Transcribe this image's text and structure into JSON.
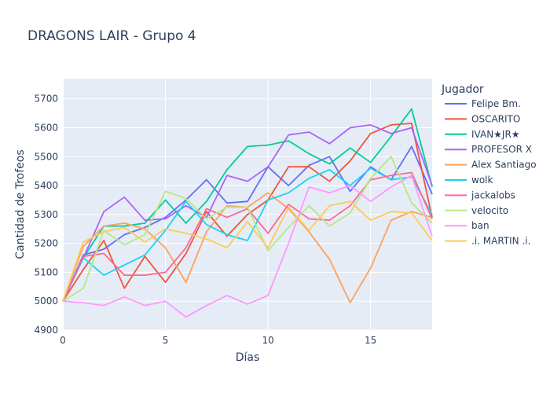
{
  "chart_data": {
    "type": "line",
    "title": "DRAGONS LAIR - Grupo 4",
    "xlabel": "Días",
    "ylabel": "Cantidad de Trofeos",
    "xlim": [
      0,
      18
    ],
    "ylim": [
      4900,
      5770
    ],
    "x_ticks": [
      0,
      5,
      10,
      15
    ],
    "y_ticks": [
      4900,
      5000,
      5100,
      5200,
      5300,
      5400,
      5500,
      5600,
      5700
    ],
    "grid": true,
    "legend_title": "Jugador",
    "legend_position": "right",
    "x": [
      0,
      1,
      2,
      3,
      4,
      5,
      6,
      7,
      8,
      9,
      10,
      11,
      12,
      13,
      14,
      15,
      16,
      17,
      18
    ],
    "series": [
      {
        "name": "Felipe Bm.",
        "color": "#636efa",
        "values": [
          5000,
          5160,
          5180,
          5230,
          5255,
          5290,
          5350,
          5420,
          5340,
          5345,
          5465,
          5400,
          5470,
          5500,
          5380,
          5465,
          5420,
          5535,
          5370
        ]
      },
      {
        "name": "OSCARITO",
        "color": "#ef553b",
        "values": [
          5000,
          5110,
          5210,
          5045,
          5155,
          5065,
          5165,
          5310,
          5225,
          5300,
          5350,
          5465,
          5465,
          5415,
          5485,
          5580,
          5610,
          5615,
          5290
        ]
      },
      {
        "name": "IVAN★JR★",
        "color": "#00cc96",
        "values": [
          5000,
          5150,
          5260,
          5260,
          5270,
          5350,
          5270,
          5345,
          5455,
          5535,
          5540,
          5555,
          5510,
          5475,
          5530,
          5480,
          5570,
          5665,
          5395
        ]
      },
      {
        "name": "PROFESOR X",
        "color": "#ab63fa",
        "values": [
          5000,
          5150,
          5310,
          5360,
          5280,
          5285,
          5330,
          5290,
          5435,
          5415,
          5465,
          5575,
          5585,
          5545,
          5600,
          5610,
          5580,
          5600,
          5400
        ]
      },
      {
        "name": "Alex Santiago",
        "color": "#ffa15a",
        "values": [
          5000,
          5190,
          5260,
          5270,
          5250,
          5185,
          5065,
          5240,
          5330,
          5325,
          5375,
          5320,
          5240,
          5145,
          4995,
          5115,
          5280,
          5310,
          5290
        ]
      },
      {
        "name": "wolk",
        "color": "#19d3f3",
        "values": [
          5000,
          5150,
          5090,
          5125,
          5160,
          5245,
          5345,
          5265,
          5230,
          5210,
          5350,
          5375,
          5425,
          5455,
          5400,
          5460,
          5420,
          5430,
          5300
        ]
      },
      {
        "name": "jackalobs",
        "color": "#ff6692",
        "values": [
          5000,
          5155,
          5165,
          5090,
          5090,
          5100,
          5185,
          5320,
          5290,
          5320,
          5235,
          5335,
          5285,
          5280,
          5330,
          5420,
          5435,
          5445,
          5285
        ]
      },
      {
        "name": "velocito",
        "color": "#b6e880",
        "values": [
          5000,
          5045,
          5245,
          5195,
          5230,
          5380,
          5355,
          5285,
          5325,
          5325,
          5175,
          5255,
          5330,
          5260,
          5305,
          5425,
          5500,
          5340,
          5270
        ]
      },
      {
        "name": "ban",
        "color": "#ff97ff",
        "values": [
          5000,
          4995,
          4985,
          5015,
          4985,
          5000,
          4945,
          4985,
          5020,
          4990,
          5020,
          5200,
          5395,
          5375,
          5400,
          5345,
          5395,
          5435,
          5225
        ]
      },
      {
        "name": ".i. MARTIN .i.",
        "color": "#fecb52",
        "values": [
          5000,
          5205,
          5240,
          5255,
          5205,
          5250,
          5235,
          5215,
          5185,
          5275,
          5185,
          5325,
          5245,
          5330,
          5345,
          5280,
          5310,
          5305,
          5210
        ]
      }
    ]
  }
}
